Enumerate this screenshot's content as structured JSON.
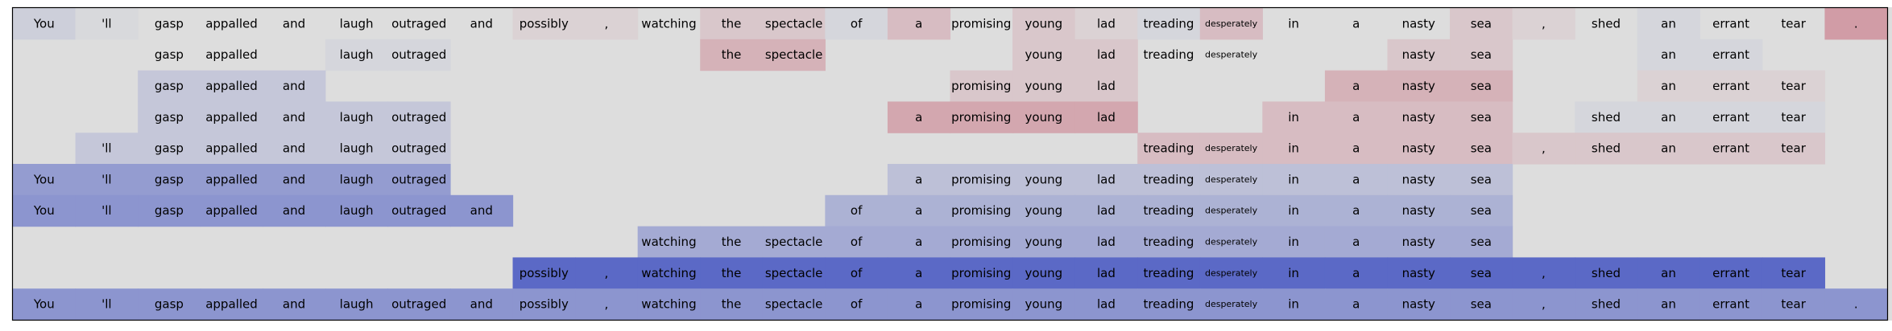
{
  "chart_data": {
    "type": "heatmap",
    "title": "",
    "xlabel": "",
    "ylabel": "",
    "tokens": [
      "You",
      "'ll",
      "gasp",
      "appalled",
      "and",
      "laugh",
      "outraged",
      "and",
      "possibly",
      ",",
      "watching",
      "the",
      "spectacle",
      "of",
      "a",
      "promising",
      "young",
      "lad",
      "treading",
      "desperately",
      "in",
      "a",
      "nasty",
      "sea",
      ",",
      "shed",
      "an",
      "errant",
      "tear",
      "."
    ],
    "scale_colors": {
      "negative": "#b40426",
      "neutral": "#dddddd",
      "positive": "#3b4cc0"
    },
    "rows": [
      {
        "show": [
          1,
          1,
          1,
          1,
          1,
          1,
          1,
          1,
          1,
          1,
          1,
          1,
          1,
          1,
          1,
          1,
          1,
          1,
          1,
          1,
          1,
          1,
          1,
          1,
          1,
          1,
          1,
          1,
          1,
          1
        ],
        "values": [
          0.1,
          0.03,
          0,
          0,
          0,
          0,
          0,
          0,
          -0.05,
          -0.05,
          0,
          -0.1,
          -0.1,
          0.05,
          -0.15,
          0,
          -0.1,
          -0.05,
          0.05,
          -0.15,
          0,
          0,
          0,
          -0.1,
          -0.05,
          0,
          0.05,
          0,
          0,
          -0.3
        ]
      },
      {
        "show": [
          0,
          0,
          1,
          1,
          0,
          1,
          1,
          0,
          0,
          0,
          0,
          1,
          1,
          0,
          0,
          0,
          1,
          1,
          1,
          1,
          0,
          0,
          1,
          1,
          0,
          0,
          1,
          1,
          0,
          0
        ],
        "values": [
          0,
          0,
          0,
          0,
          0,
          0.05,
          0.05,
          0,
          0,
          0,
          0,
          -0.2,
          -0.2,
          0,
          0,
          0,
          -0.1,
          -0.1,
          0,
          0,
          0,
          0,
          -0.1,
          -0.1,
          0,
          0,
          0.05,
          0.05,
          0,
          0
        ]
      },
      {
        "show": [
          0,
          0,
          1,
          1,
          1,
          0,
          0,
          0,
          0,
          0,
          0,
          0,
          0,
          0,
          0,
          1,
          1,
          1,
          0,
          0,
          0,
          1,
          1,
          1,
          0,
          0,
          1,
          1,
          1,
          0
        ],
        "values": [
          0,
          0,
          0.15,
          0.15,
          0.15,
          0,
          0,
          0,
          0,
          0,
          0,
          0,
          0,
          0,
          0,
          -0.1,
          -0.1,
          -0.1,
          0,
          0,
          0,
          -0.2,
          -0.2,
          -0.2,
          0,
          0,
          -0.05,
          -0.05,
          -0.05,
          0
        ]
      },
      {
        "show": [
          0,
          0,
          1,
          1,
          1,
          1,
          1,
          0,
          0,
          0,
          0,
          0,
          0,
          0,
          1,
          1,
          1,
          1,
          0,
          0,
          1,
          1,
          1,
          1,
          0,
          1,
          1,
          1,
          1,
          0
        ],
        "values": [
          0,
          0,
          0.15,
          0.15,
          0.15,
          0.15,
          0.15,
          0,
          0,
          0,
          0,
          0,
          0,
          0,
          -0.25,
          -0.25,
          -0.25,
          -0.25,
          0,
          0,
          -0.15,
          -0.15,
          -0.15,
          -0.15,
          0,
          0.05,
          0.05,
          0.05,
          0.05,
          0
        ]
      },
      {
        "show": [
          0,
          1,
          1,
          1,
          1,
          1,
          1,
          0,
          0,
          0,
          0,
          0,
          0,
          0,
          0,
          0,
          0,
          0,
          1,
          1,
          1,
          1,
          1,
          1,
          1,
          1,
          1,
          1,
          1,
          0
        ],
        "values": [
          0,
          0.15,
          0.15,
          0.15,
          0.15,
          0.15,
          0.15,
          0,
          0,
          0,
          0,
          0,
          0,
          0,
          0,
          0,
          0,
          0,
          -0.15,
          -0.15,
          -0.15,
          -0.15,
          -0.15,
          -0.15,
          -0.1,
          -0.1,
          -0.1,
          -0.1,
          -0.1,
          0
        ]
      },
      {
        "show": [
          1,
          1,
          1,
          1,
          1,
          1,
          1,
          0,
          0,
          0,
          0,
          0,
          0,
          0,
          1,
          1,
          1,
          1,
          1,
          1,
          1,
          1,
          1,
          1,
          0,
          0,
          0,
          0,
          0,
          0
        ],
        "values": [
          0.45,
          0.45,
          0.45,
          0.45,
          0.45,
          0.45,
          0.45,
          0,
          0,
          0,
          0,
          0,
          0,
          0,
          0.2,
          0.2,
          0.2,
          0.2,
          0.2,
          0.2,
          0.2,
          0.2,
          0.2,
          0.2,
          0,
          0,
          0,
          0,
          0,
          0
        ]
      },
      {
        "show": [
          1,
          1,
          1,
          1,
          1,
          1,
          1,
          1,
          0,
          0,
          0,
          0,
          0,
          1,
          1,
          1,
          1,
          1,
          1,
          1,
          1,
          1,
          1,
          1,
          0,
          0,
          0,
          0,
          0,
          0
        ],
        "values": [
          0.5,
          0.5,
          0.5,
          0.5,
          0.5,
          0.5,
          0.5,
          0.5,
          0,
          0,
          0,
          0,
          0,
          0.3,
          0.3,
          0.3,
          0.3,
          0.3,
          0.3,
          0.3,
          0.3,
          0.3,
          0.3,
          0.3,
          0,
          0,
          0,
          0,
          0,
          0
        ]
      },
      {
        "show": [
          0,
          0,
          0,
          0,
          0,
          0,
          0,
          0,
          0,
          0,
          1,
          1,
          1,
          1,
          1,
          1,
          1,
          1,
          1,
          1,
          1,
          1,
          1,
          1,
          0,
          0,
          0,
          0,
          0,
          0
        ],
        "values": [
          0,
          0,
          0,
          0,
          0,
          0,
          0,
          0,
          0,
          0,
          0.35,
          0.35,
          0.35,
          0.35,
          0.35,
          0.35,
          0.35,
          0.35,
          0.35,
          0.35,
          0.35,
          0.35,
          0.35,
          0.35,
          0,
          0,
          0,
          0,
          0,
          0
        ]
      },
      {
        "show": [
          0,
          0,
          0,
          0,
          0,
          0,
          0,
          0,
          1,
          1,
          1,
          1,
          1,
          1,
          1,
          1,
          1,
          1,
          1,
          1,
          1,
          1,
          1,
          1,
          1,
          1,
          1,
          1,
          1,
          0
        ],
        "values": [
          0,
          0,
          0,
          0,
          0,
          0,
          0,
          0,
          0.8,
          0.8,
          0.8,
          0.8,
          0.8,
          0.8,
          0.8,
          0.8,
          0.8,
          0.8,
          0.8,
          0.8,
          0.8,
          0.8,
          0.8,
          0.8,
          0.8,
          0.8,
          0.8,
          0.8,
          0.8,
          0
        ]
      },
      {
        "show": [
          1,
          1,
          1,
          1,
          1,
          1,
          1,
          1,
          1,
          1,
          1,
          1,
          1,
          1,
          1,
          1,
          1,
          1,
          1,
          1,
          1,
          1,
          1,
          1,
          1,
          1,
          1,
          1,
          1,
          1
        ],
        "values": [
          0.5,
          0.5,
          0.5,
          0.5,
          0.5,
          0.5,
          0.5,
          0.5,
          0.5,
          0.5,
          0.5,
          0.5,
          0.5,
          0.5,
          0.5,
          0.5,
          0.5,
          0.5,
          0.5,
          0.5,
          0.5,
          0.5,
          0.5,
          0.5,
          0.5,
          0.5,
          0.5,
          0.5,
          0.5,
          0.5
        ]
      }
    ]
  }
}
